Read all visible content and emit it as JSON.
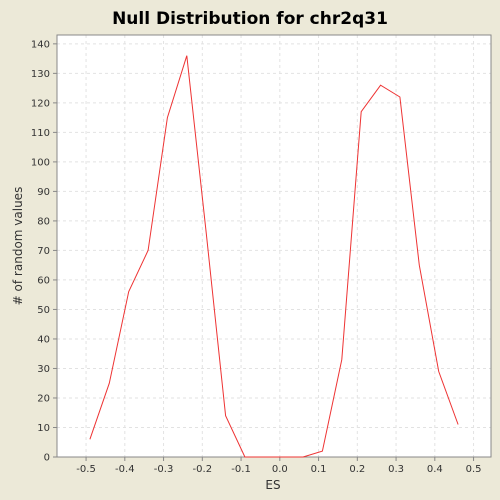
{
  "chart_data": {
    "type": "line",
    "title": "Null Distribution for chr2q31",
    "xlabel": "ES",
    "ylabel": "# of random values",
    "xlim": [
      -0.575,
      0.545
    ],
    "ylim": [
      0,
      143
    ],
    "x_ticks": [
      -0.5,
      -0.4,
      -0.3,
      -0.2,
      -0.1,
      0.0,
      0.1,
      0.2,
      0.3,
      0.4,
      0.5
    ],
    "x_tick_labels": [
      "-0.5",
      "-0.4",
      "-0.3",
      "-0.2",
      "-0.1",
      "0.0",
      "0.1",
      "0.2",
      "0.3",
      "0.4",
      "0.5"
    ],
    "y_ticks": [
      0,
      10,
      20,
      30,
      40,
      50,
      60,
      70,
      80,
      90,
      100,
      110,
      120,
      130,
      140
    ],
    "y_tick_labels": [
      "0",
      "10",
      "20",
      "30",
      "40",
      "50",
      "60",
      "70",
      "80",
      "90",
      "100",
      "110",
      "120",
      "130",
      "140"
    ],
    "grid": true,
    "colors": {
      "line": "#ee3333",
      "background": "#ece9d8",
      "plot_background": "#ffffff",
      "grid": "#e2e2e2",
      "axis": "#888888"
    },
    "series": [
      {
        "x": [
          -0.49,
          -0.44,
          -0.39,
          -0.34,
          -0.29,
          -0.24,
          -0.19,
          -0.14,
          -0.09,
          -0.04,
          0.01,
          0.06,
          0.11,
          0.16,
          0.21,
          0.26,
          0.31,
          0.36,
          0.41,
          0.46
        ],
        "y": [
          6,
          25,
          56,
          70,
          115,
          136,
          76,
          14,
          0,
          0,
          0,
          0,
          2,
          33,
          117,
          126,
          122,
          65,
          29,
          11
        ]
      }
    ]
  }
}
